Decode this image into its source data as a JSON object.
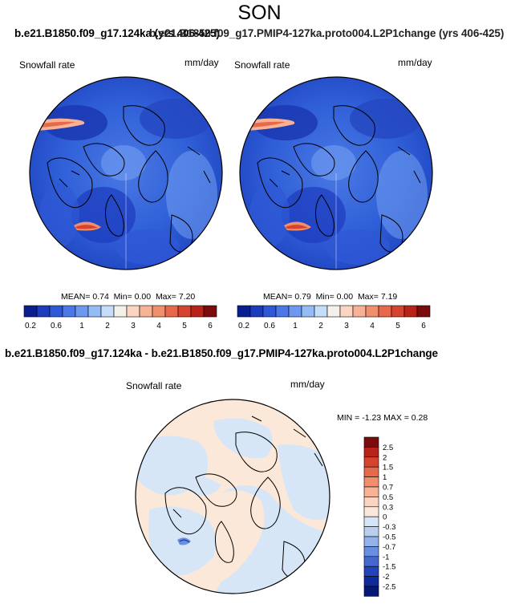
{
  "season": "SON",
  "case_left": "b.e21.B1850.f09_g17.124ka (yrs 406-425)",
  "case_right": "b.e21.B1850.f09_g17.PMIP4-127ka.proto004.L2P1change (yrs 406-425)",
  "panels": [
    {
      "variable": "Snowfall rate",
      "units": "mm/day",
      "stats": {
        "mean_label": "MEAN=",
        "mean": "0.74",
        "min_label": "Min=",
        "min": "0.00",
        "max_label": "Max=",
        "max": "7.20"
      }
    },
    {
      "variable": "Snowfall rate",
      "units": "mm/day",
      "stats": {
        "mean_label": "MEAN=",
        "mean": "0.79",
        "min_label": "Min=",
        "min": "0.00",
        "max_label": "Max=",
        "max": "7.19"
      }
    }
  ],
  "colorbar": {
    "colors": [
      "#0a1f8f",
      "#1c3bbd",
      "#2f58d6",
      "#4b78e6",
      "#6c99ef",
      "#95bbf5",
      "#c6dcfb",
      "#f4f1ea",
      "#fbd5c2",
      "#f7b195",
      "#f18e6c",
      "#e8684a",
      "#d6432e",
      "#b8231a",
      "#7a0d0b"
    ],
    "ticks": [
      "0.2",
      "0.6",
      "1",
      "2",
      "3",
      "4",
      "5",
      "6"
    ]
  },
  "diff": {
    "title": "b.e21.B1850.f09_g17.124ka - b.e21.B1850.f09_g17.PMIP4-127ka.proto004.L2P1change",
    "variable": "Snowfall rate",
    "units": "mm/day",
    "minmax": "MIN =  -1.23 MAX =   0.28",
    "colorbar": {
      "colors": [
        "#7a0d0b",
        "#b8231a",
        "#d6432e",
        "#e8684a",
        "#f18e6c",
        "#f7b195",
        "#fbd5c2",
        "#fce8d8",
        "#d7e6f7",
        "#b9cff0",
        "#93b2ea",
        "#6a8fe0",
        "#4568cf",
        "#2443b8",
        "#0f2a9a",
        "#061775"
      ],
      "labels": [
        "2.5",
        "2",
        "1.5",
        "1",
        "0.7",
        "0.5",
        "0.3",
        "0",
        "-0.3",
        "-0.5",
        "-0.7",
        "-1",
        "-1.5",
        "-2",
        "-2.5"
      ]
    }
  }
}
